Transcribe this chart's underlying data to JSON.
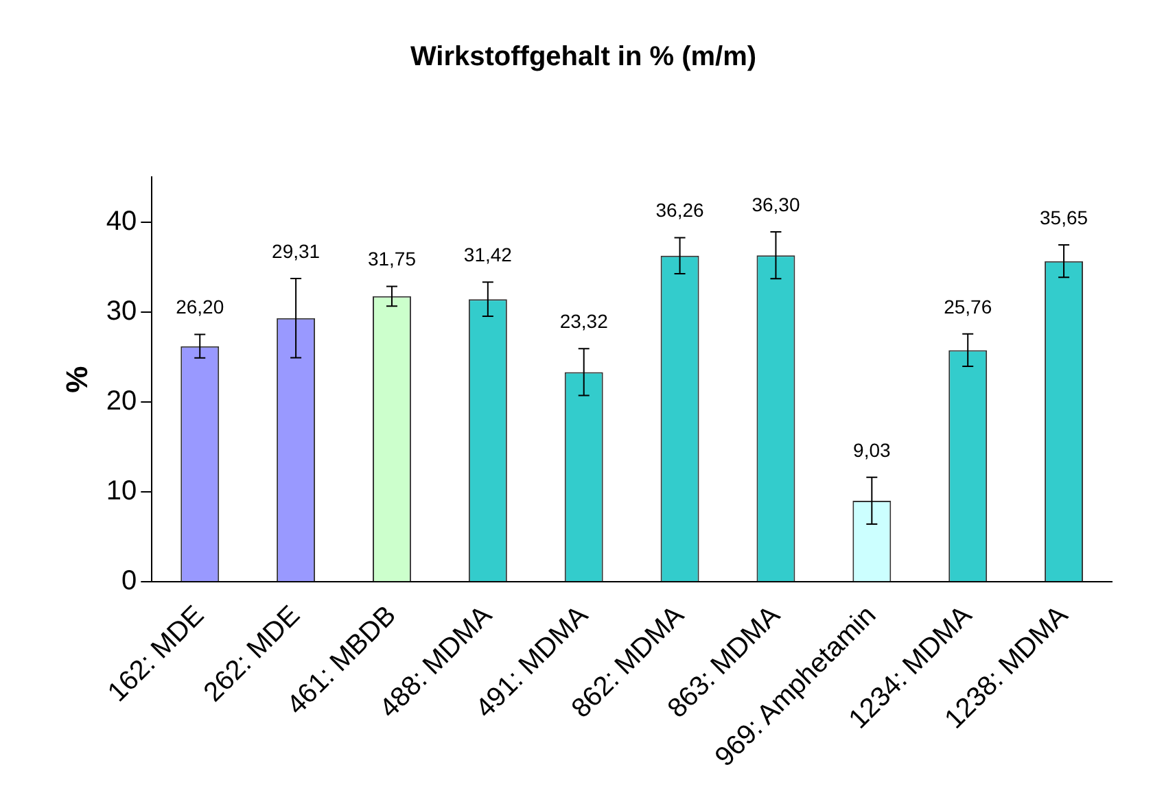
{
  "chart_data": {
    "type": "bar",
    "title": "Wirkstoffgehalt in % (m/m)",
    "ylabel": "%",
    "categories": [
      "162: MDE",
      "262: MDE",
      "461: MBDB",
      "488: MDMA",
      "491: MDMA",
      "862: MDMA",
      "863: MDMA",
      "969: Amphetamin",
      "1234: MDMA",
      "1238: MDMA"
    ],
    "values": [
      26.2,
      29.31,
      31.75,
      31.42,
      23.32,
      36.26,
      36.3,
      9.03,
      25.76,
      35.65
    ],
    "value_labels": [
      "26,20",
      "29,31",
      "31,75",
      "31,42",
      "23,32",
      "36,26",
      "36,30",
      "9,03",
      "25,76",
      "35,65"
    ],
    "errors": [
      1.3,
      4.4,
      1.1,
      1.9,
      2.6,
      2.0,
      2.6,
      2.6,
      1.8,
      1.8
    ],
    "colors": [
      "#9999ff",
      "#9999ff",
      "#ccffcc",
      "#33cccc",
      "#33cccc",
      "#33cccc",
      "#33cccc",
      "#ccffff",
      "#33cccc",
      "#33cccc"
    ],
    "ylim": [
      0,
      45
    ],
    "yticks": [
      0,
      10,
      20,
      30,
      40
    ],
    "grid": false,
    "legend": false
  }
}
